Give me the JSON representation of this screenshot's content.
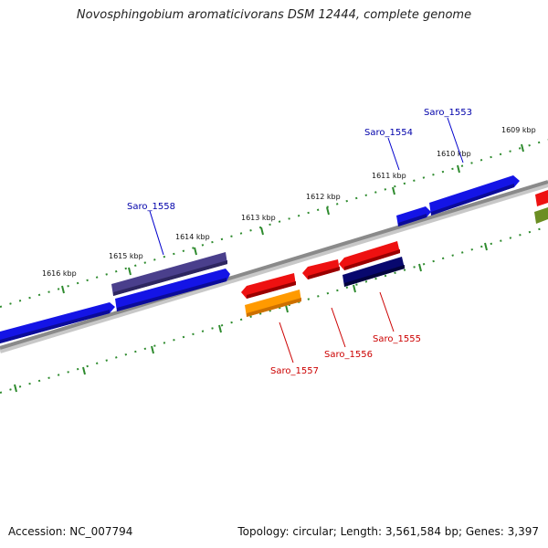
{
  "title": "Novosphingobium aromaticivorans DSM 12444, complete genome",
  "footer": {
    "accession": "Accession: NC_007794",
    "summary": "Topology: circular; Length: 3,561,584 bp; Genes: 3,397"
  },
  "colors": {
    "backbone": "#8a8a8a",
    "ruler": "#2e8b2e",
    "forward_label": "#0000aa",
    "reverse_label": "#cc0000",
    "blue": "#1414e6",
    "purple": "#4a3f8c",
    "red": "#ee1111",
    "orange": "#ff9a00",
    "navy": "#08086e",
    "olive": "#6b8e23"
  },
  "ruler_labels": [
    "1616 kbp",
    "1615 kbp",
    "1614 kbp",
    "1613 kbp",
    "1612 kbp",
    "1611 kbp",
    "1610 kbp",
    "1609 kbp"
  ],
  "gene_labels": [
    {
      "name": "Saro_1553",
      "strand": "forward"
    },
    {
      "name": "Saro_1554",
      "strand": "forward"
    },
    {
      "name": "Saro_1558",
      "strand": "forward"
    },
    {
      "name": "Saro_1555",
      "strand": "reverse"
    },
    {
      "name": "Saro_1556",
      "strand": "reverse"
    },
    {
      "name": "Saro_1557",
      "strand": "reverse"
    }
  ]
}
